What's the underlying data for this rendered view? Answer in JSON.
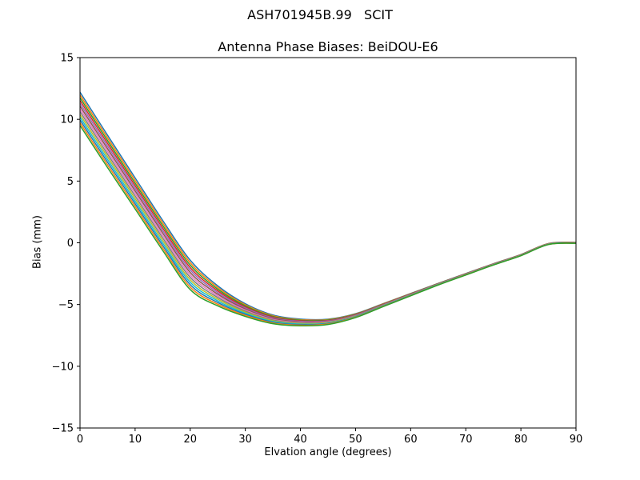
{
  "figure": {
    "title": "ASH701945B.99   SCIT",
    "background_color": "#ffffff",
    "text_color": "#000000",
    "axes_frame_color": "#000000"
  },
  "chart_data": {
    "type": "line",
    "title": "Antenna Phase Biases: BeiDOU-E6",
    "xlabel": "Elvation angle (degrees)",
    "ylabel": "Bias (mm)",
    "xlim": [
      0,
      90
    ],
    "ylim": [
      -15,
      15
    ],
    "xticks": [
      0,
      10,
      20,
      30,
      40,
      50,
      60,
      70,
      80,
      90
    ],
    "yticks": [
      -15,
      -10,
      -5,
      0,
      5,
      10,
      15
    ],
    "grid": false,
    "legend_position": "none",
    "description": "13 overlapping antenna phase bias curves, one per satellite/channel, spread apart at low elevation and converging to a single curve toward 90 degrees",
    "x": [
      0,
      5,
      10,
      15,
      20,
      25,
      30,
      35,
      40,
      45,
      50,
      55,
      60,
      65,
      70,
      75,
      80,
      85,
      90
    ],
    "base_values": [
      10.85,
      7.4,
      4.0,
      0.6,
      -2.6,
      -4.3,
      -5.45,
      -6.2,
      -6.45,
      -6.4,
      -5.9,
      -5.05,
      -4.2,
      -3.35,
      -2.55,
      -1.75,
      -1.0,
      -0.1,
      0.0
    ],
    "spread_decay": [
      1.0,
      0.97,
      0.93,
      0.9,
      0.88,
      0.6,
      0.38,
      0.26,
      0.2,
      0.16,
      0.12,
      0.09,
      0.07,
      0.05,
      0.045,
      0.04,
      0.035,
      0.03,
      0.03
    ],
    "num_lines": 13,
    "line_offsets": [
      1.35,
      1.125,
      0.9,
      0.675,
      0.45,
      0.225,
      0.0,
      -0.225,
      -0.45,
      -0.675,
      -0.9,
      -1.125,
      -1.35
    ],
    "line_colors": [
      "#1f77b4",
      "#ff7f0e",
      "#2ca02c",
      "#d62728",
      "#9467bd",
      "#8c564b",
      "#e377c2",
      "#7f7f7f",
      "#bcbd22",
      "#17becf",
      "#1f77b4",
      "#ff7f0e",
      "#2ca02c"
    ],
    "line_width": 1.5,
    "value_range_at_0_deg": [
      9.5,
      12.2
    ],
    "min_value": -6.45,
    "min_at_degrees": 40,
    "value_at_90_deg": 0.0
  }
}
